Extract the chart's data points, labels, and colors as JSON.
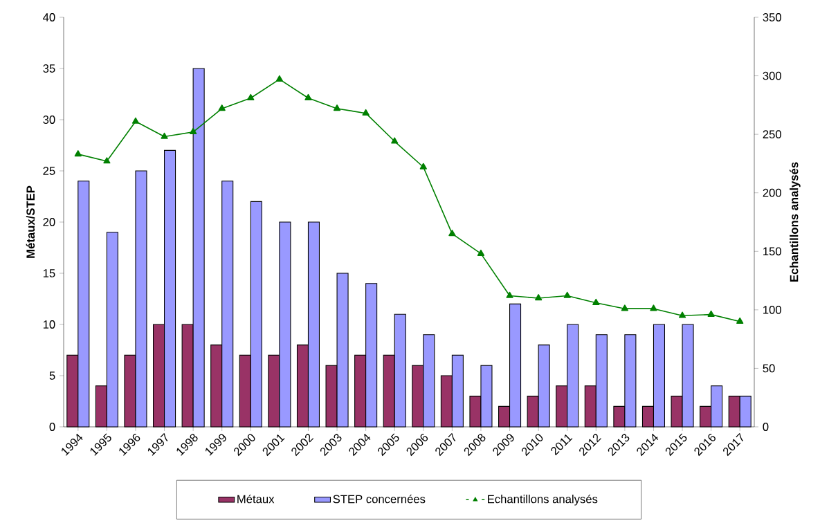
{
  "chart_data": {
    "type": "bar",
    "categories": [
      "1994",
      "1995",
      "1996",
      "1997",
      "1998",
      "1999",
      "2000",
      "2001",
      "2002",
      "2003",
      "2004",
      "2005",
      "2006",
      "2007",
      "2008",
      "2009",
      "2010",
      "2011",
      "2012",
      "2013",
      "2014",
      "2015",
      "2016",
      "2017"
    ],
    "series": [
      {
        "name": "Métaux",
        "color": "#993366",
        "values": [
          7,
          4,
          7,
          10,
          10,
          8,
          7,
          7,
          8,
          6,
          7,
          7,
          6,
          5,
          3,
          2,
          3,
          4,
          4,
          2,
          2,
          3,
          2,
          3
        ]
      },
      {
        "name": "STEP concernées",
        "color": "#9999ff",
        "values": [
          24,
          19,
          25,
          27,
          35,
          24,
          22,
          20,
          20,
          15,
          14,
          11,
          9,
          7,
          6,
          12,
          8,
          10,
          9,
          9,
          10,
          10,
          4,
          3
        ]
      },
      {
        "name": "Echantillons analysés",
        "type": "line",
        "axis": "y2",
        "marker": "triangle",
        "color": "#008000",
        "values": [
          233,
          227,
          261,
          248,
          252,
          272,
          281,
          297,
          281,
          272,
          268,
          244,
          222,
          165,
          148,
          112,
          110,
          112,
          106,
          101,
          101,
          95,
          96,
          90
        ]
      }
    ],
    "ylabel": "Métaux/STEP",
    "y2label": "Echantillons analysés",
    "ylim": [
      0,
      40
    ],
    "yticks": [
      0,
      5,
      10,
      15,
      20,
      25,
      30,
      35,
      40
    ],
    "y2lim": [
      0,
      350
    ],
    "y2ticks": [
      0,
      50,
      100,
      150,
      200,
      250,
      300,
      350
    ],
    "legend": "bottom"
  }
}
